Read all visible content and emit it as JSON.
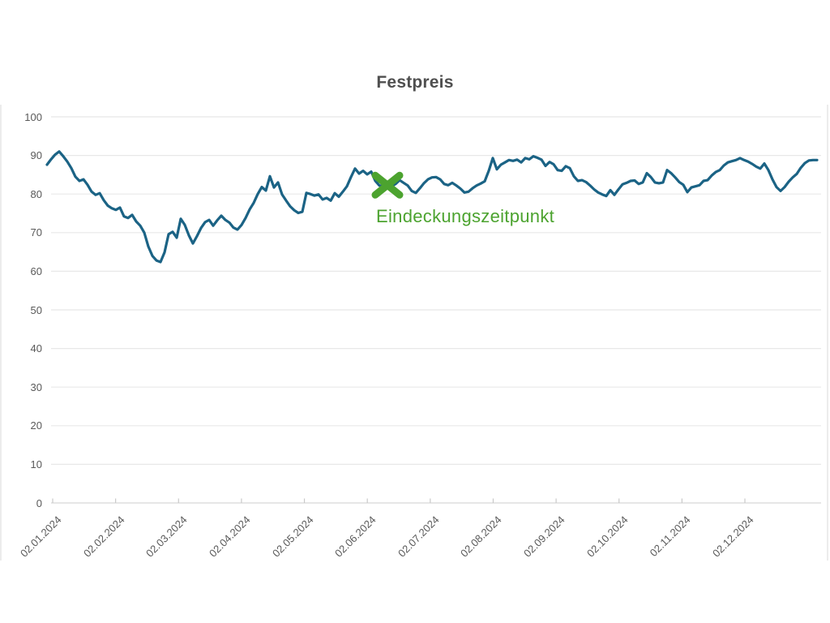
{
  "page": {
    "background": "#ffffff"
  },
  "chart_data": {
    "type": "line",
    "title": "Festpreis",
    "xlabel": "",
    "ylabel": "",
    "ylim": [
      0,
      100
    ],
    "y_ticks": [
      0,
      10,
      20,
      30,
      40,
      50,
      60,
      70,
      80,
      90,
      100
    ],
    "grid": "horizontal",
    "legend": "none",
    "x_tick_labels": [
      "02.01.2024",
      "02.02.2024",
      "02.03.2024",
      "02.04.2024",
      "02.05.2024",
      "02.06.2024",
      "02.07.2024",
      "02.08.2024",
      "02.09.2024",
      "02.10.2024",
      "02.11.2024",
      "02.12.2024"
    ],
    "series": [
      {
        "name": "Festpreis",
        "color": "#1b6385",
        "values": [
          87.6,
          89.0,
          90.2,
          91.0,
          89.8,
          88.4,
          86.7,
          84.5,
          83.4,
          83.8,
          82.4,
          80.6,
          79.8,
          80.2,
          78.4,
          77.0,
          76.3,
          75.9,
          76.5,
          74.2,
          73.8,
          74.6,
          72.9,
          71.8,
          70.0,
          66.4,
          64.0,
          62.8,
          62.4,
          64.9,
          69.6,
          70.2,
          68.7,
          73.6,
          72.0,
          69.3,
          67.2,
          69.1,
          71.2,
          72.7,
          73.3,
          71.8,
          73.2,
          74.4,
          73.3,
          72.6,
          71.3,
          70.8,
          72.0,
          73.8,
          76.0,
          77.7,
          80.0,
          81.8,
          80.9,
          84.6,
          81.7,
          83.0,
          79.9,
          78.3,
          76.8,
          75.8,
          75.1,
          75.4,
          80.3,
          80.0,
          79.6,
          79.9,
          78.6,
          79.0,
          78.3,
          80.2,
          79.3,
          80.6,
          82.0,
          84.4,
          86.6,
          85.3,
          86.0,
          85.1,
          85.8,
          83.4,
          82.2,
          82.0,
          82.3,
          82.0,
          82.6,
          83.6,
          82.9,
          82.2,
          80.8,
          80.3,
          81.5,
          82.8,
          83.8,
          84.3,
          84.4,
          83.8,
          82.6,
          82.3,
          82.9,
          82.2,
          81.4,
          80.4,
          80.6,
          81.5,
          82.2,
          82.7,
          83.3,
          86.0,
          89.3,
          86.4,
          87.6,
          88.2,
          88.8,
          88.6,
          88.9,
          88.2,
          89.3,
          89.0,
          89.8,
          89.4,
          88.9,
          87.3,
          88.3,
          87.7,
          86.2,
          86.0,
          87.2,
          86.7,
          84.6,
          83.4,
          83.6,
          83.1,
          82.2,
          81.2,
          80.4,
          79.9,
          79.5,
          81.0,
          79.8,
          81.2,
          82.5,
          82.9,
          83.4,
          83.5,
          82.6,
          83.0,
          85.4,
          84.4,
          83.0,
          82.8,
          83.0,
          86.2,
          85.4,
          84.3,
          83.1,
          82.4,
          80.5,
          81.7,
          82.0,
          82.3,
          83.4,
          83.6,
          84.8,
          85.7,
          86.2,
          87.4,
          88.2,
          88.5,
          88.8,
          89.3,
          88.8,
          88.4,
          87.8,
          87.1,
          86.6,
          87.9,
          86.2,
          83.8,
          81.8,
          80.8,
          81.8,
          83.2,
          84.3,
          85.2,
          86.8,
          88.0,
          88.7,
          88.8,
          88.8
        ]
      }
    ],
    "annotation": {
      "label": "Eindeckungszeitpunkt",
      "marker": "x",
      "color": "#4ca32f",
      "index": 84,
      "value": 82.3
    },
    "colors": {
      "gridline": "#e8e8e8",
      "axis_line": "#d8d8d8",
      "tick": "#c9c9c9",
      "axis_text": "#595959",
      "title_text": "#4f4f4f"
    }
  }
}
